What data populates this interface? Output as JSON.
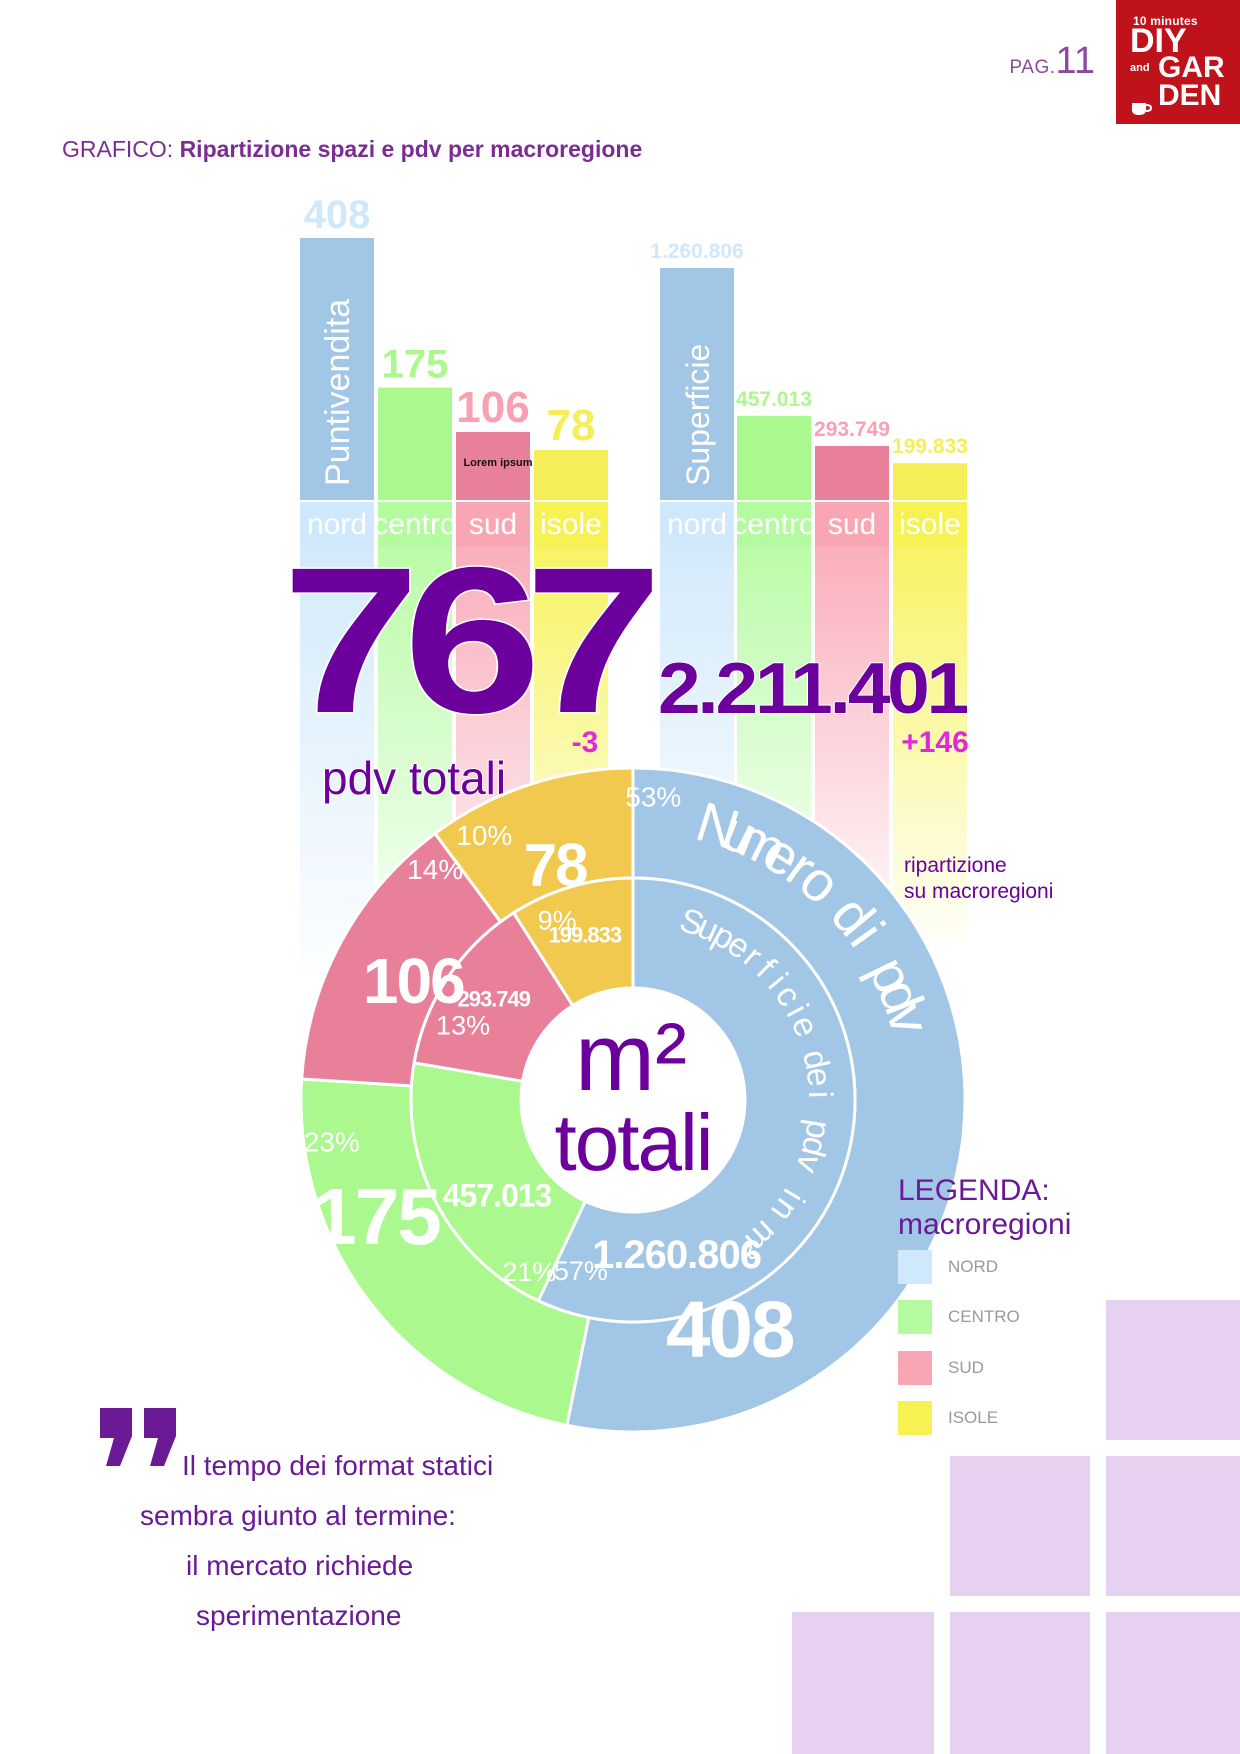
{
  "header": {
    "page_prefix": "PAG.",
    "page_number": "11",
    "logo": {
      "line1": "10 minutes",
      "line2": "DIY",
      "line3": "and",
      "line4": "GAR",
      "line5": "DEN",
      "bg_color": "#c0121b"
    }
  },
  "chart_title": {
    "prefix": "GRAFICO:",
    "title": "Ripartizione spazi e pdv per macroregione"
  },
  "colors": {
    "nord": "#a2c6e6",
    "centro": "#aaf88e",
    "sud": "#e8809a",
    "isole": "#f4ef58",
    "nord_light": "#cfe8fb",
    "centro_light": "#b4fba0",
    "sud_light": "#f9a6b4",
    "isole_light": "#f7f254",
    "donut_isole": "#f0c94e",
    "accent_purple": "#6c009d",
    "magenta": "#e028d8",
    "deco_lilac": "#e6d2f0"
  },
  "chart_data": [
    {
      "type": "bar",
      "categories": [
        "nord",
        "centro",
        "sud",
        "isole"
      ],
      "values": [
        408,
        175,
        106,
        78
      ],
      "value_labels": [
        "408",
        "175",
        "106",
        "78"
      ],
      "bar_caption": "Puntivendita",
      "annotation": "Lorem ipsum",
      "total_label": "767",
      "total_caption": "pdv totali",
      "delta": "-3"
    },
    {
      "type": "bar",
      "categories": [
        "nord",
        "centro",
        "sud",
        "isole"
      ],
      "values": [
        1260806,
        457013,
        293749,
        199833
      ],
      "value_labels": [
        "1.260.806",
        "457.013",
        "293.749",
        "199.833"
      ],
      "bar_caption": "Superficie",
      "total_label": "2.211.401",
      "delta": "+146",
      "note": [
        "ripartizione",
        "su macroregioni"
      ]
    },
    {
      "type": "pie",
      "ring": "outer",
      "caption": "Numero di pdv",
      "labels": [
        "nord",
        "centro",
        "sud",
        "isole"
      ],
      "values": [
        408,
        175,
        106,
        78
      ],
      "value_labels": [
        "408",
        "175",
        "106",
        "78"
      ],
      "percent_labels": [
        "53%",
        "23%",
        "14%",
        "10%"
      ]
    },
    {
      "type": "pie",
      "ring": "inner",
      "caption": "Superficie dei pdv in m²",
      "labels": [
        "nord",
        "centro",
        "sud",
        "isole"
      ],
      "values": [
        1260806,
        457013,
        293749,
        199833
      ],
      "value_labels": [
        "1.260.806",
        "457.013",
        "293.749",
        "199.833"
      ],
      "percent_labels": [
        "57%",
        "21%",
        "13%",
        "9%"
      ],
      "center_label": [
        "m²",
        "totali"
      ]
    }
  ],
  "legend": {
    "title": [
      "LEGENDA:",
      "macroregioni"
    ],
    "items": [
      {
        "label": "NORD",
        "color": "#cfe8fb"
      },
      {
        "label": "CENTRO",
        "color": "#b4fba0"
      },
      {
        "label": "SUD",
        "color": "#f9a6b4"
      },
      {
        "label": "ISOLE",
        "color": "#f7f254"
      }
    ]
  },
  "quote": {
    "lines": [
      "Il tempo dei format statici",
      "sembra giunto al termine:",
      "il mercato richiede",
      "sperimentazione"
    ]
  }
}
